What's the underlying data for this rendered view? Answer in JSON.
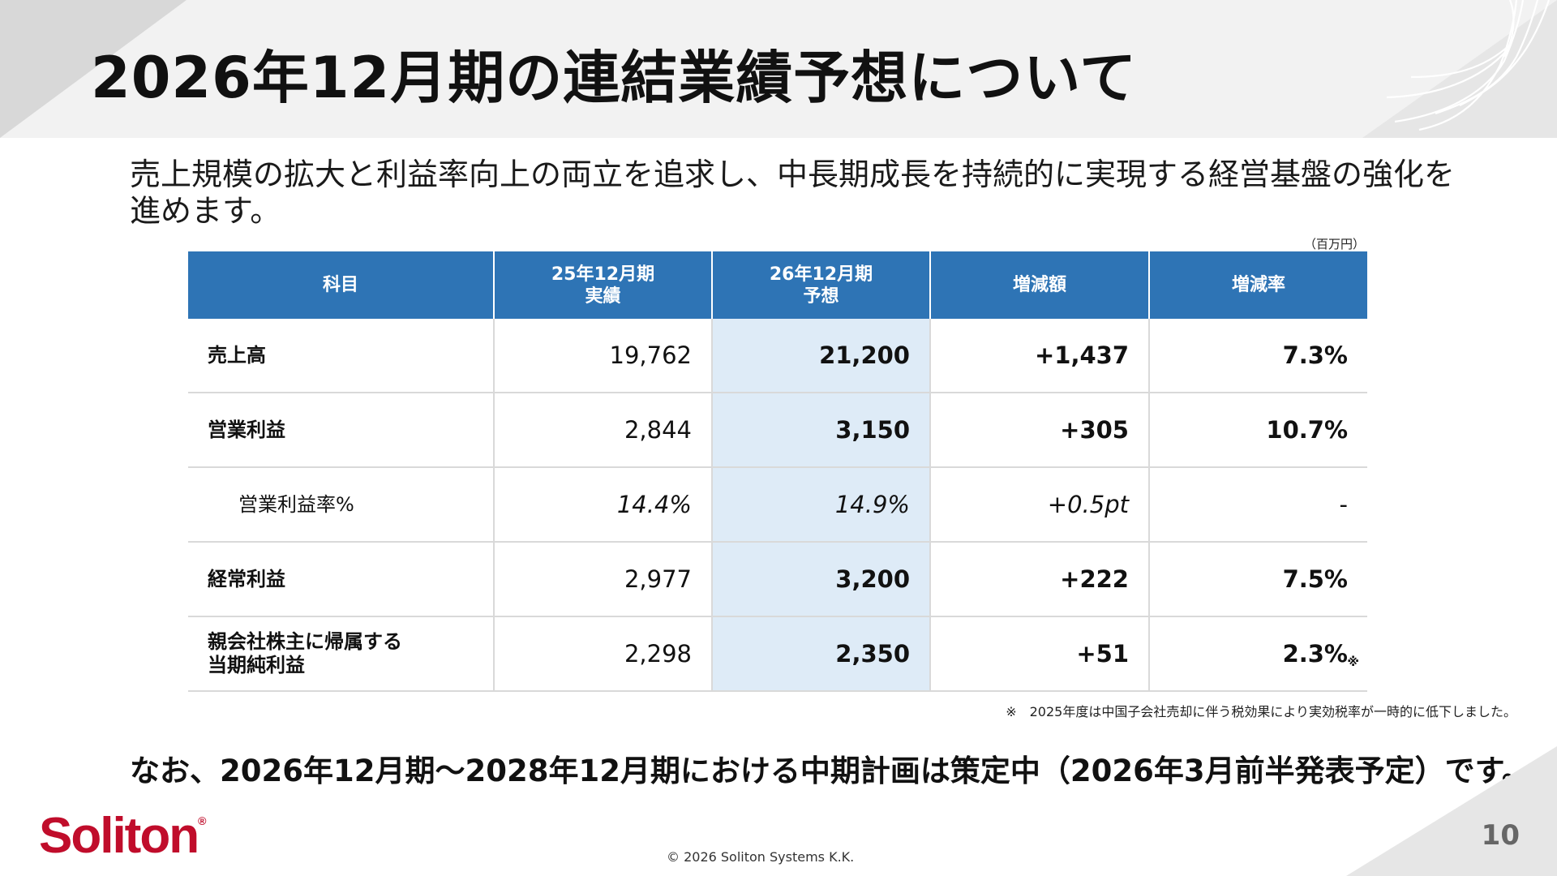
{
  "title": "2026年12月期の連結業績予想について",
  "lead": "売上規模の拡大と利益率向上の両立を追求し、中長期成長を持続的に実現する経営基盤の強化を進めます。",
  "table": {
    "unit": "（百万円）",
    "headers": {
      "item": "科目",
      "actual_line1": "25年12月期",
      "actual_line2": "実績",
      "forecast_line1": "26年12月期",
      "forecast_line2": "予想",
      "change": "増減額",
      "change_rate": "増減率"
    },
    "rows": [
      {
        "label": "売上高",
        "actual": "19,762",
        "forecast": "21,200",
        "change": "+1,437",
        "rate": "7.3%"
      },
      {
        "label": "営業利益",
        "actual": "2,844",
        "forecast": "3,150",
        "change": "+305",
        "rate": "10.7%"
      },
      {
        "label": "営業利益率%",
        "actual": "14.4%",
        "forecast": "14.9%",
        "change": "+0.5pt",
        "rate": "-"
      },
      {
        "label": "経常利益",
        "actual": "2,977",
        "forecast": "3,200",
        "change": "+222",
        "rate": "7.5%"
      },
      {
        "label_line1": "親会社株主に帰属する",
        "label_line2": "当期純利益",
        "actual": "2,298",
        "forecast": "2,350",
        "change": "+51",
        "rate": "2.3%",
        "rate_mark": "※"
      }
    ]
  },
  "footnote": "※　2025年度は中国子会社売却に伴う税効果により実効税率が一時的に低下しました。",
  "closing": "なお、2026年12月期～2028年12月期における中期計画は策定中（2026年3月前半発表予定）です。",
  "footer": {
    "logo": "Soliton",
    "logo_mark": "®",
    "copyright": "© 2026 Soliton Systems K.K.",
    "page_number": "10"
  },
  "colors": {
    "header_blue": "#2e74b5",
    "forecast_column": "#deebf7",
    "logo_red": "#c00d2b"
  }
}
